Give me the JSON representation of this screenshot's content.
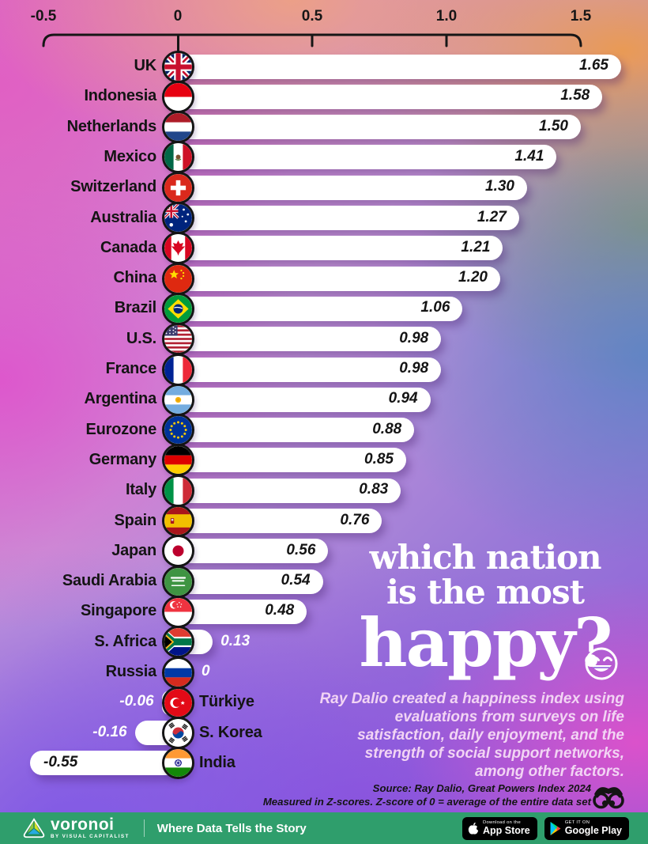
{
  "axis": {
    "tick_labels": [
      "-0.5",
      "0",
      "0.5",
      "1.0",
      "1.5"
    ]
  },
  "chart_data": {
    "type": "bar",
    "orientation": "horizontal",
    "title": "which nation is the most happy?",
    "unit": "Z-score",
    "xlim": [
      -0.5,
      1.5
    ],
    "x_ticks": [
      -0.5,
      0,
      0.5,
      1.0,
      1.5
    ],
    "categories": [
      "UK",
      "Indonesia",
      "Netherlands",
      "Mexico",
      "Switzerland",
      "Australia",
      "Canada",
      "China",
      "Brazil",
      "U.S.",
      "France",
      "Argentina",
      "Eurozone",
      "Germany",
      "Italy",
      "Spain",
      "Japan",
      "Saudi Arabia",
      "Singapore",
      "S. Africa",
      "Russia",
      "Türkiye",
      "S. Korea",
      "India"
    ],
    "values": [
      1.65,
      1.58,
      1.5,
      1.41,
      1.3,
      1.27,
      1.21,
      1.2,
      1.06,
      0.98,
      0.98,
      0.94,
      0.88,
      0.85,
      0.83,
      0.76,
      0.56,
      0.54,
      0.48,
      0.13,
      0,
      -0.06,
      -0.16,
      -0.55
    ],
    "value_labels": [
      "1.65",
      "1.58",
      "1.50",
      "1.41",
      "1.30",
      "1.27",
      "1.21",
      "1.20",
      "1.06",
      "0.98",
      "0.98",
      "0.94",
      "0.88",
      "0.85",
      "0.83",
      "0.76",
      "0.56",
      "0.54",
      "0.48",
      "0.13",
      "0",
      "-0.06",
      "-0.16",
      "-0.55"
    ],
    "flags": [
      "uk",
      "indonesia",
      "netherlands",
      "mexico",
      "switzerland",
      "australia",
      "canada",
      "china",
      "brazil",
      "us",
      "france",
      "argentina",
      "eurozone",
      "germany",
      "italy",
      "spain",
      "japan",
      "saudi_arabia",
      "singapore",
      "s_africa",
      "russia",
      "turkiye",
      "s_korea",
      "india"
    ],
    "grid": false,
    "legend": false
  },
  "title": {
    "line1": "which nation",
    "line2": "is the most",
    "line3": "happy?",
    "emoji": "grinning-face-icon"
  },
  "description": {
    "lead": "Ray Dalio",
    "rest": " created a happiness index using evaluations from surveys on life satisfaction, daily enjoyment, and the strength of social support networks, among other factors."
  },
  "source": {
    "line1": "Source: Ray Dalio, Great Powers Index 2024",
    "line2": "Measured in Z-scores. Z-score of 0 = average of the entire data set"
  },
  "footer": {
    "brand": "voronoi",
    "brand_sub": "BY VISUAL CAPITALIST",
    "slogan": "Where Data Tells the Story",
    "appstore": {
      "line1": "Download on the",
      "line2": "App Store"
    },
    "gplay": {
      "line1": "GET IT ON",
      "line2": "Google Play"
    }
  },
  "colors": {
    "footer_green": "#2f9e6c",
    "bar_white": "#ffffff",
    "text_black": "#141414",
    "description_pink": "#f2d4f4",
    "title_white": "#ffffff"
  }
}
